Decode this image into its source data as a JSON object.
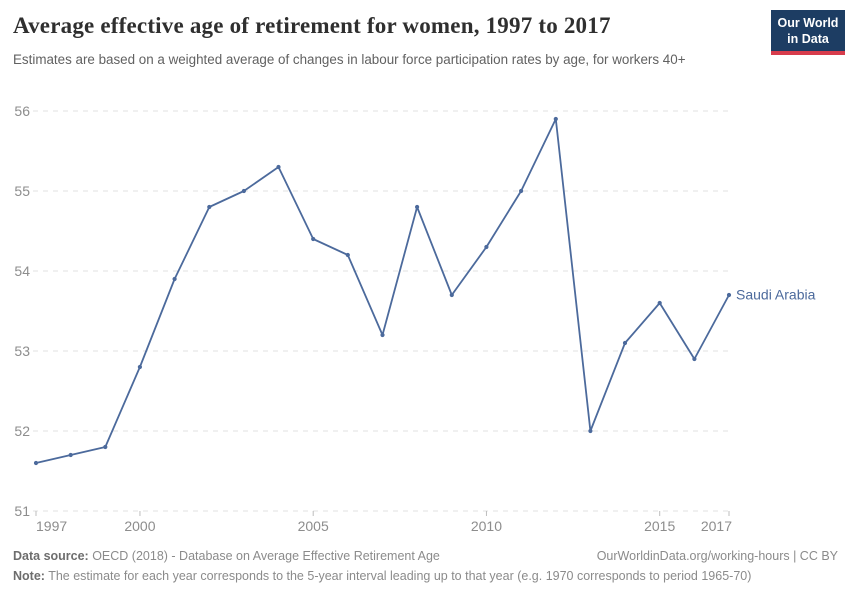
{
  "header": {
    "title": "Average effective age of retirement for women, 1997 to 2017",
    "subtitle": "Estimates are based on a weighted average of changes in labour force participation rates by age, for workers 40+",
    "logo": {
      "line1": "Our World",
      "line2": "in Data",
      "bg": "#1d3d63",
      "accent": "#d73c4c"
    }
  },
  "chart_data": {
    "type": "line",
    "title": "Average effective age of retirement for women, 1997 to 2017",
    "x": [
      1997,
      1998,
      1999,
      2000,
      2001,
      2002,
      2003,
      2004,
      2005,
      2006,
      2007,
      2008,
      2009,
      2010,
      2011,
      2012,
      2013,
      2014,
      2015,
      2016,
      2017
    ],
    "series": [
      {
        "name": "Saudi Arabia",
        "color": "#4c6a9c",
        "values": [
          51.6,
          51.7,
          51.8,
          52.8,
          53.9,
          54.8,
          55.0,
          55.3,
          54.4,
          54.2,
          53.2,
          54.8,
          53.7,
          54.3,
          55.0,
          55.9,
          52.0,
          53.1,
          53.6,
          52.9,
          53.7
        ]
      }
    ],
    "xlabel": "",
    "ylabel": "",
    "ylim": [
      51,
      56
    ],
    "yticks": [
      51,
      52,
      53,
      54,
      55,
      56
    ],
    "xticks": [
      1997,
      2000,
      2005,
      2010,
      2015,
      2017
    ],
    "grid": "horizontal-dashed",
    "legend_position": "end-of-line-label"
  },
  "colors": {
    "line": "#4c6a9c",
    "grid": "#e2e2e2",
    "axis_text": "#8d8d8d",
    "tick_mark": "#bdbdbd"
  },
  "footer": {
    "datasource_label": "Data source:",
    "datasource_text": " OECD (2018) - Database on Average Effective Retirement Age",
    "link": "OurWorldinData.org/working-hours | CC BY",
    "note_label": "Note:",
    "note_text": " The estimate for each year corresponds to the 5-year interval leading up to that year (e.g. 1970 corresponds to period 1965-70)"
  }
}
